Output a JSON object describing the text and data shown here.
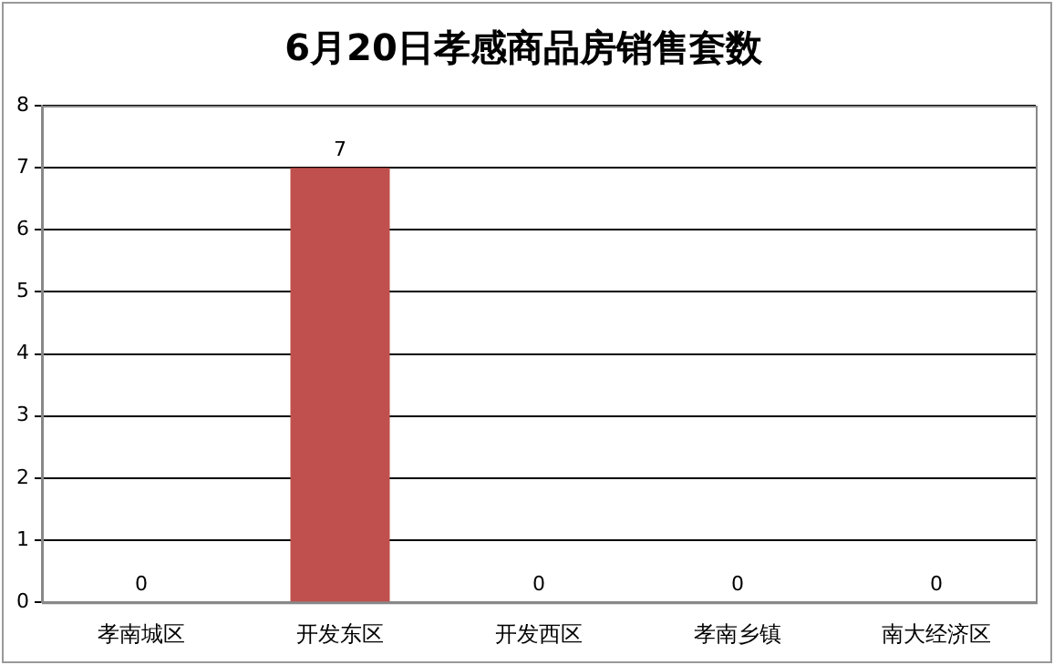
{
  "chart_data": {
    "type": "bar",
    "title": "6月20日孝感商品房销售套数",
    "categories": [
      "孝南城区",
      "开发东区",
      "开发西区",
      "孝南乡镇",
      "南大经济区"
    ],
    "values": [
      0,
      7,
      0,
      0,
      0
    ],
    "color": "#c0504d",
    "ylim": [
      0,
      8
    ],
    "yticks": [
      0,
      1,
      2,
      3,
      4,
      5,
      6,
      7,
      8
    ],
    "grid": "y",
    "data_labels": true,
    "legend": false
  }
}
